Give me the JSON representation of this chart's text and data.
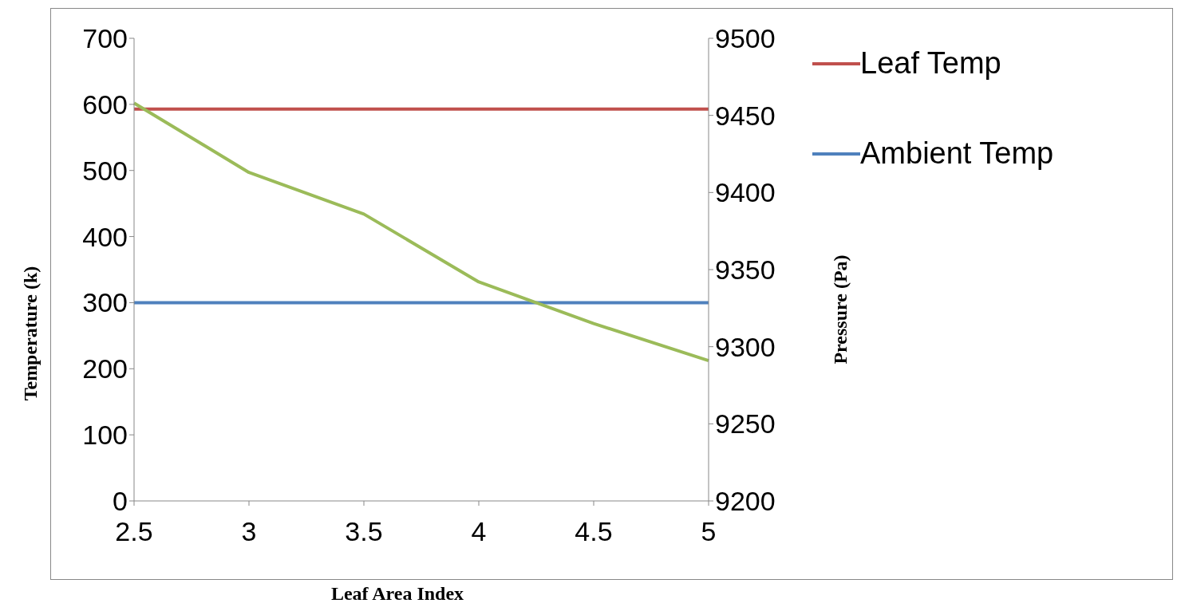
{
  "chart_data": {
    "type": "line",
    "xlabel": "Leaf Area Index",
    "ylabel": "Temperature (k)",
    "y2label": "Pressure (Pa)",
    "categories": [
      "2.5",
      "3",
      "3.5",
      "4",
      "4.5",
      "5"
    ],
    "series": [
      {
        "name": "Leaf Temp",
        "color": "#c0504d",
        "values": [
          593,
          593,
          593,
          593,
          593,
          593
        ]
      },
      {
        "name": "Ambient Temp",
        "color": "#4f81bd",
        "values": [
          300,
          300,
          300,
          300,
          300,
          300
        ]
      },
      {
        "color": "#9bbb59",
        "axis": "y2",
        "values": [
          9458,
          9413,
          9386,
          9342,
          9315,
          9291
        ]
      }
    ],
    "ylim": [
      0,
      700
    ],
    "yticks": [
      0,
      100,
      200,
      300,
      400,
      500,
      600,
      700
    ],
    "y2lim": [
      9200,
      9500
    ],
    "y2ticks": [
      9200,
      9250,
      9300,
      9350,
      9400,
      9450,
      9500
    ],
    "grid": false,
    "legend": "top right",
    "marker": "none",
    "line_style": "solid"
  }
}
